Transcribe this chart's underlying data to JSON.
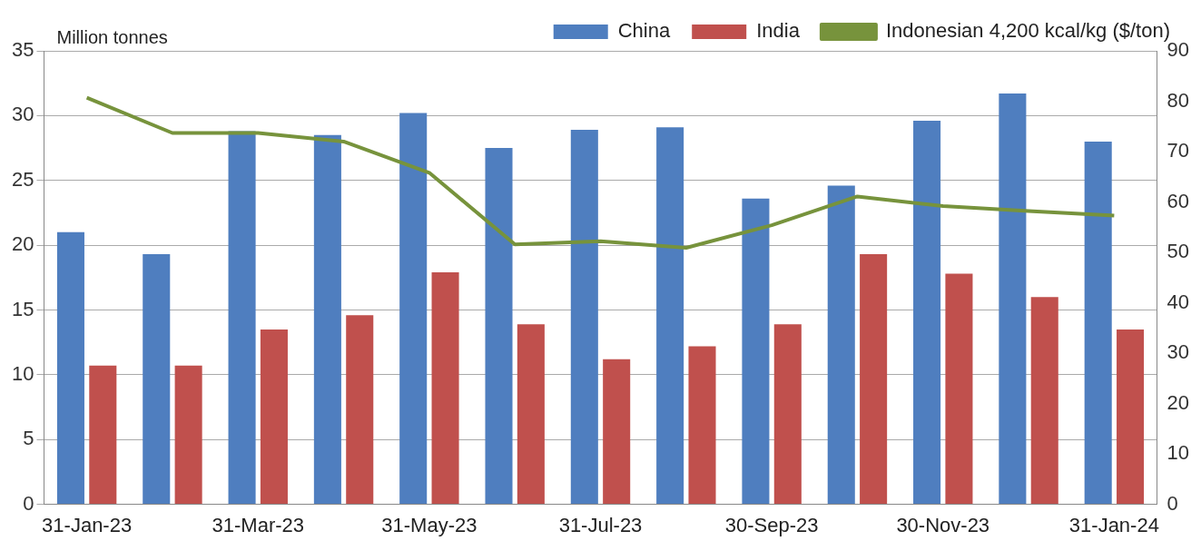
{
  "chart_data": {
    "type": "bar",
    "ylabel": "Million tonnes",
    "categories": [
      "31-Jan-23",
      null,
      "31-Mar-23",
      null,
      "31-May-23",
      null,
      "31-Jul-23",
      null,
      "30-Sep-23",
      null,
      "30-Nov-23",
      null,
      "31-Jan-24"
    ],
    "series": [
      {
        "name": "China",
        "color": "#4f7ebf",
        "values": [
          21.0,
          19.3,
          28.8,
          28.5,
          30.2,
          27.5,
          28.9,
          29.1,
          23.6,
          24.6,
          29.6,
          31.7,
          28.0
        ]
      },
      {
        "name": "India",
        "color": "#c0504d",
        "values": [
          10.7,
          10.7,
          13.5,
          14.6,
          17.9,
          13.9,
          11.2,
          12.2,
          13.9,
          19.3,
          17.8,
          16.0,
          13.5
        ]
      },
      {
        "name": "Indonesian 4,200 kcal/kg ($/ton)",
        "type": "line",
        "axis": "y2",
        "color": "#77933c",
        "values": [
          80.7,
          73.7,
          73.7,
          72.0,
          65.8,
          51.6,
          52.2,
          50.9,
          55.4,
          61.1,
          59.2,
          58.2,
          57.3
        ]
      }
    ],
    "ylim": [
      0,
      35
    ],
    "yticks": [
      0,
      5,
      10,
      15,
      20,
      25,
      30,
      35
    ],
    "y2lim": [
      0,
      90
    ],
    "y2ticks": [
      0,
      10,
      20,
      30,
      40,
      50,
      60,
      70,
      80,
      90
    ],
    "grid": "y",
    "legend": "top",
    "marker": "none",
    "line_style": "solid"
  }
}
